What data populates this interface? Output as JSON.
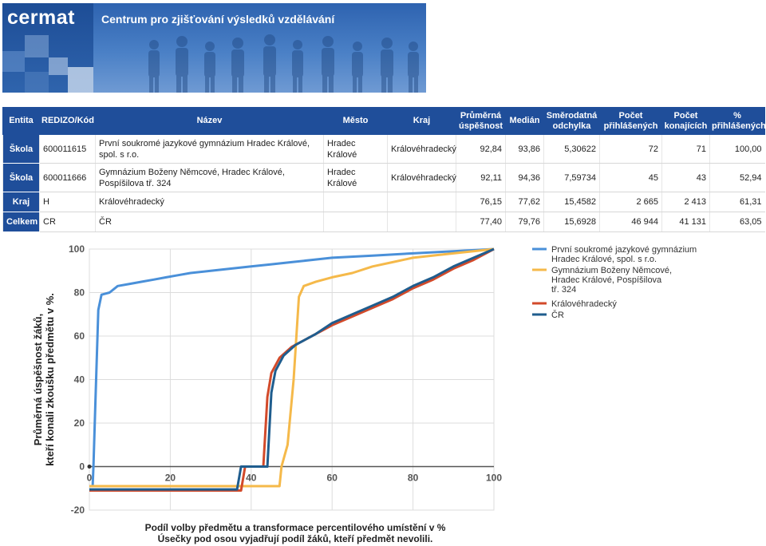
{
  "banner": {
    "logo": "cermat",
    "subtitle": "Centrum pro zjišťování výsledků vzdělávání"
  },
  "table": {
    "headers": {
      "entita": "Entita",
      "redizo": "REDIZO/Kód",
      "nazev": "Název",
      "mesto": "Město",
      "kraj": "Kraj",
      "prumerna": "Průměrná úspěšnost",
      "median": "Medián",
      "smerodatna": "Směrodatná odchylka",
      "pocet_prihlasenych": "Počet přihlášených",
      "pocet_konajicich": "Počet konajících",
      "procento_prihlasenych": "% přihlášených"
    },
    "rows": [
      {
        "entita": "Škola",
        "redizo": "600011615",
        "nazev": "První soukromé jazykové gymnázium Hradec Králové, spol. s r.o.",
        "mesto": "Hradec Králové",
        "kraj": "Královéhradecký",
        "prumerna": "92,84",
        "median": "93,86",
        "smerodatna": "5,30622",
        "pocet_prihlasenych": "72",
        "pocet_konajicich": "71",
        "procento_prihlasenych": "100,00"
      },
      {
        "entita": "Škola",
        "redizo": "600011666",
        "nazev": "Gymnázium Boženy Němcové, Hradec Králové, Pospíšilova tř. 324",
        "mesto": "Hradec Králové",
        "kraj": "Královéhradecký",
        "prumerna": "92,11",
        "median": "94,36",
        "smerodatna": "7,59734",
        "pocet_prihlasenych": "45",
        "pocet_konajicich": "43",
        "procento_prihlasenych": "52,94"
      },
      {
        "entita": "Kraj",
        "redizo": "H",
        "nazev": "Královéhradecký",
        "mesto": "",
        "kraj": "",
        "prumerna": "76,15",
        "median": "77,62",
        "smerodatna": "15,4582",
        "pocet_prihlasenych": "2 665",
        "pocet_konajicich": "2 413",
        "procento_prihlasenych": "61,31"
      },
      {
        "entita": "Celkem",
        "redizo": "CR",
        "nazev": "ČR",
        "mesto": "",
        "kraj": "",
        "prumerna": "77,40",
        "median": "79,76",
        "smerodatna": "15,6928",
        "pocet_prihlasenych": "46 944",
        "pocet_konajicich": "41 131",
        "procento_prihlasenych": "63,05"
      }
    ]
  },
  "chart_data": {
    "type": "line",
    "xlabel": "Podíl volby předmětu a transformace percentilového umístění v %",
    "xlabel2": "Úsečky pod osou vyjadřují podíl žáků, kteří předmět nevolili.",
    "ylabel": "Průměrná úspěšnost žáků,",
    "ylabel2": "kteří konali zkoušku předmětu v %.",
    "xlim": [
      0,
      100
    ],
    "ylim": [
      -20,
      100
    ],
    "xticks": [
      0,
      20,
      40,
      60,
      80,
      100
    ],
    "yticks": [
      -20,
      0,
      20,
      40,
      60,
      80,
      100
    ],
    "grid": true,
    "legend_position": "right",
    "series": [
      {
        "name": "První soukromé jazykové gymnázium Hradec Králové, spol. s r.o.",
        "color": "#4a90d9",
        "points": [
          [
            0,
            -9
          ],
          [
            0.8,
            -9
          ],
          [
            1,
            0
          ],
          [
            1.5,
            30
          ],
          [
            2.2,
            72
          ],
          [
            3,
            79
          ],
          [
            5,
            80
          ],
          [
            7,
            83
          ],
          [
            10,
            84
          ],
          [
            13,
            85
          ],
          [
            16,
            86
          ],
          [
            19,
            87
          ],
          [
            22,
            88
          ],
          [
            25,
            89
          ],
          [
            30,
            90
          ],
          [
            35,
            91
          ],
          [
            40,
            92
          ],
          [
            45,
            93
          ],
          [
            50,
            94
          ],
          [
            55,
            95
          ],
          [
            60,
            96
          ],
          [
            70,
            97
          ],
          [
            80,
            98
          ],
          [
            90,
            99
          ],
          [
            100,
            100
          ]
        ]
      },
      {
        "name": "Gymnázium Boženy Němcové, Hradec Králové, Pospíšilova tř. 324",
        "color": "#f5b94a",
        "points": [
          [
            0,
            -9
          ],
          [
            47,
            -9
          ],
          [
            47.5,
            0
          ],
          [
            49,
            10
          ],
          [
            50.5,
            40
          ],
          [
            51.8,
            78
          ],
          [
            53,
            83
          ],
          [
            56,
            85
          ],
          [
            60,
            87
          ],
          [
            65,
            89
          ],
          [
            70,
            92
          ],
          [
            75,
            94
          ],
          [
            80,
            96
          ],
          [
            90,
            98
          ],
          [
            100,
            100
          ]
        ]
      },
      {
        "name": "Královéhradecký",
        "color": "#d24a2a",
        "points": [
          [
            0,
            -11
          ],
          [
            37.5,
            -11
          ],
          [
            38.5,
            0
          ],
          [
            43,
            0
          ],
          [
            44,
            32
          ],
          [
            45,
            43
          ],
          [
            47,
            50
          ],
          [
            50,
            55
          ],
          [
            55,
            60
          ],
          [
            60,
            65
          ],
          [
            65,
            69
          ],
          [
            70,
            73
          ],
          [
            75,
            77
          ],
          [
            80,
            82
          ],
          [
            85,
            86
          ],
          [
            90,
            91
          ],
          [
            95,
            95
          ],
          [
            100,
            100
          ]
        ]
      },
      {
        "name": "ČR",
        "color": "#1f5d8e",
        "points": [
          [
            0,
            -10.5
          ],
          [
            36.5,
            -10.5
          ],
          [
            37.5,
            0
          ],
          [
            44,
            0
          ],
          [
            45,
            34
          ],
          [
            46,
            44
          ],
          [
            48,
            51
          ],
          [
            51,
            56
          ],
          [
            56,
            61
          ],
          [
            60,
            66
          ],
          [
            65,
            70
          ],
          [
            70,
            74
          ],
          [
            75,
            78
          ],
          [
            80,
            83
          ],
          [
            85,
            87
          ],
          [
            90,
            92
          ],
          [
            95,
            96
          ],
          [
            100,
            100
          ]
        ]
      }
    ]
  }
}
